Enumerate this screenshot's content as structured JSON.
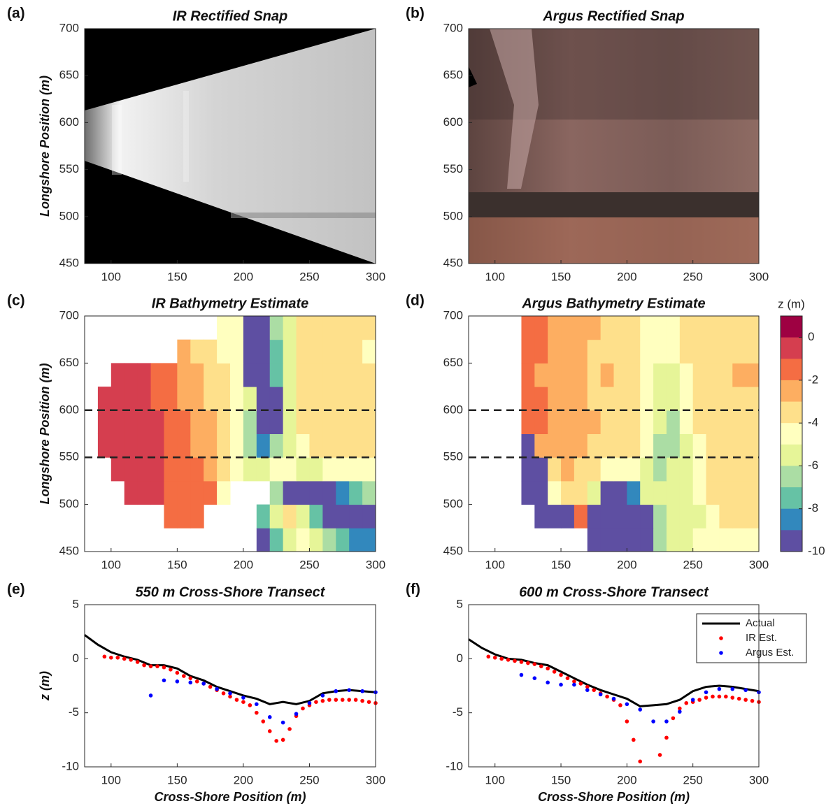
{
  "chart_data": [
    {
      "type": "image",
      "panel_label": "(a)",
      "title": "IR Rectified Snap",
      "ylabel": "Longshore Position (m)",
      "xlim": [
        80,
        300
      ],
      "ylim": [
        450,
        700
      ],
      "xticks": [
        100,
        150,
        200,
        250,
        300
      ],
      "yticks": [
        450,
        500,
        550,
        600,
        650,
        700
      ]
    },
    {
      "type": "image",
      "panel_label": "(b)",
      "title": "Argus Rectified Snap",
      "xlim": [
        80,
        300
      ],
      "ylim": [
        450,
        700
      ],
      "xticks": [
        100,
        150,
        200,
        250,
        300
      ],
      "yticks": [
        450,
        500,
        550,
        600,
        650,
        700
      ]
    },
    {
      "type": "heatmap",
      "panel_label": "(c)",
      "title": "IR Bathymetry Estimate",
      "ylabel": "Longshore Position (m)",
      "xlim": [
        80,
        300
      ],
      "ylim": [
        450,
        700
      ],
      "xticks": [
        100,
        150,
        200,
        250,
        300
      ],
      "yticks": [
        450,
        500,
        550,
        600,
        650,
        700
      ],
      "colormap": [
        "#9e0142",
        "#d53e4f",
        "#f46d43",
        "#fdae61",
        "#fee08b",
        "#ffffbf",
        "#e6f598",
        "#abdda4",
        "#66c2a5",
        "#3288bd",
        "#5e4fa2"
      ],
      "zlim": [
        -10,
        1
      ],
      "hlines": [
        550,
        600
      ],
      "x": [
        85,
        95,
        105,
        115,
        125,
        135,
        145,
        155,
        165,
        175,
        185,
        195,
        205,
        215,
        225,
        235,
        245,
        255,
        265,
        275,
        285,
        295
      ],
      "y": [
        462.5,
        487.5,
        512.5,
        537.5,
        562.5,
        587.5,
        612.5,
        637.5,
        662.5,
        687.5
      ],
      "z": [
        [
          null,
          null,
          null,
          null,
          null,
          null,
          null,
          null,
          null,
          null,
          null,
          null,
          null,
          -10,
          -7,
          -5,
          -4,
          -5,
          -6,
          -7,
          -8,
          -8
        ],
        [
          null,
          null,
          null,
          null,
          null,
          null,
          -1,
          -1,
          -1.5,
          null,
          null,
          null,
          null,
          -7,
          -5,
          -3.5,
          -5,
          -7,
          -9,
          -10,
          -10,
          -10
        ],
        [
          null,
          null,
          null,
          0,
          0,
          -0.5,
          -1,
          -1,
          -1.5,
          -1.5,
          -4,
          null,
          null,
          null,
          -6,
          -9,
          -10,
          -10,
          -9,
          -8,
          -7,
          -6
        ],
        [
          null,
          null,
          0,
          0,
          0,
          -0.5,
          -1,
          -1.5,
          -1.5,
          -2,
          -3,
          -4.5,
          -5,
          -5,
          -4.5,
          -4.5,
          -5,
          -5,
          -4.5,
          -4,
          -4,
          -4
        ],
        [
          null,
          0,
          0,
          0,
          0,
          -0.5,
          -1,
          -1.5,
          -2,
          -2.5,
          -3.5,
          -4.5,
          -6,
          -8,
          -6,
          -5,
          -4,
          -3.5,
          -3,
          -3,
          -3,
          -3
        ],
        [
          null,
          0,
          0,
          0,
          0,
          -0.5,
          -1,
          -1.5,
          -2,
          -2.5,
          -3,
          -4,
          -6,
          -10,
          -10,
          -5,
          -3.5,
          -3,
          -3,
          -3,
          -3,
          -3
        ],
        [
          null,
          0,
          0,
          0,
          0,
          -1,
          -1.5,
          -2,
          -2.5,
          -3,
          -3.5,
          -4,
          -5,
          -10,
          -10,
          -5,
          -3.5,
          -3,
          -3,
          -3,
          -3,
          -3
        ],
        [
          null,
          null,
          0,
          0,
          -0.5,
          -1,
          -1.5,
          -2,
          -2.5,
          -3,
          -3.5,
          -4.5,
          -10,
          -10,
          -7,
          -5,
          -3.5,
          -3,
          -3,
          -3,
          -3,
          -3
        ],
        [
          null,
          null,
          null,
          null,
          null,
          null,
          null,
          -2.5,
          -3,
          -3.5,
          -4,
          -4.5,
          -10,
          -10,
          -7,
          -5,
          -3.5,
          -3,
          -3.5,
          -3,
          -3,
          -4.5
        ],
        [
          null,
          null,
          null,
          null,
          null,
          null,
          null,
          null,
          null,
          null,
          -4,
          -4.5,
          -10,
          -10,
          -6,
          -5,
          -3.5,
          -3,
          -3,
          -3,
          -3,
          -3
        ]
      ]
    },
    {
      "type": "heatmap",
      "panel_label": "(d)",
      "title": "Argus Bathymetry Estimate",
      "xlim": [
        80,
        300
      ],
      "ylim": [
        450,
        700
      ],
      "xticks": [
        100,
        150,
        200,
        250,
        300
      ],
      "yticks": [
        450,
        500,
        550,
        600,
        650,
        700
      ],
      "colormap": [
        "#9e0142",
        "#d53e4f",
        "#f46d43",
        "#fdae61",
        "#fee08b",
        "#ffffbf",
        "#e6f598",
        "#abdda4",
        "#66c2a5",
        "#3288bd",
        "#5e4fa2"
      ],
      "zlim": [
        -10,
        1
      ],
      "hlines": [
        550,
        600
      ],
      "colorbar": {
        "label": "z (m)",
        "ticks": [
          0,
          -2,
          -4,
          -6,
          -8,
          -10
        ]
      },
      "x": [
        85,
        95,
        105,
        115,
        125,
        135,
        145,
        155,
        165,
        175,
        185,
        195,
        205,
        215,
        225,
        235,
        245,
        255,
        265,
        275,
        285,
        295
      ],
      "y": [
        462.5,
        487.5,
        512.5,
        537.5,
        562.5,
        587.5,
        612.5,
        637.5,
        662.5,
        687.5
      ],
      "z": [
        [
          null,
          null,
          null,
          null,
          null,
          null,
          null,
          null,
          null,
          -10,
          -10,
          -10,
          -10,
          -10,
          -6,
          -5,
          -5,
          -4.5,
          -4.5,
          -4,
          -4,
          -4
        ],
        [
          null,
          null,
          null,
          null,
          null,
          -10,
          -10,
          -10,
          -1,
          -10,
          -10,
          -10,
          -10,
          -9,
          -6,
          -5.5,
          -5,
          -5,
          -4.5,
          -3,
          -3,
          -3
        ],
        [
          null,
          null,
          null,
          null,
          -10,
          -10,
          -4.5,
          -3,
          -3,
          -5,
          -10,
          -10,
          -8,
          -5,
          -5,
          -5,
          -5,
          -4.5,
          -3,
          -3,
          -3,
          -3
        ],
        [
          null,
          null,
          null,
          null,
          -10,
          -10,
          -3.5,
          -2.5,
          -3,
          -3,
          -4.5,
          -4.5,
          -4.5,
          -5,
          -6,
          -5.5,
          -5,
          -4,
          -3,
          -3,
          -3,
          -3
        ],
        [
          null,
          null,
          null,
          null,
          -10,
          -2.5,
          -2.5,
          -2.5,
          -2.5,
          -3,
          -3,
          -3,
          -3.5,
          -4.5,
          -6,
          -6,
          -5,
          -4,
          -3,
          -3,
          -3,
          -3
        ],
        [
          null,
          null,
          null,
          null,
          -1.5,
          -1.5,
          -2.5,
          -2.5,
          -2.5,
          -2.5,
          -3,
          -3,
          -3.5,
          -4.5,
          -5.5,
          -6,
          -4.5,
          -3,
          -3,
          -3,
          -3,
          -3
        ],
        [
          null,
          null,
          null,
          null,
          -1.5,
          -1.5,
          -2.5,
          -2.5,
          -2.5,
          -3,
          -3,
          -3,
          -3,
          -4,
          -5.5,
          -5.5,
          -4,
          -3,
          -3,
          -3,
          -3,
          -3
        ],
        [
          null,
          null,
          null,
          null,
          -1.5,
          -2,
          -2.5,
          -2,
          -2.5,
          -3,
          -2.5,
          -3,
          -3.5,
          -4,
          -5.5,
          -5,
          -4,
          -3,
          -3,
          -3,
          -2.5,
          -2.5
        ],
        [
          null,
          null,
          null,
          null,
          -1.5,
          -1.5,
          -2,
          -2.5,
          -2.5,
          -3,
          -3,
          -3,
          -3.5,
          -4.5,
          -4.5,
          -4.5,
          -3.5,
          -3,
          -3,
          -3,
          -3,
          -3
        ],
        [
          null,
          null,
          null,
          null,
          -1.5,
          -1.5,
          -2,
          -2.5,
          -2.5,
          -2.5,
          -3,
          -3,
          -3.5,
          -4.5,
          -4.5,
          -4,
          -3.5,
          -3,
          -3,
          -3,
          -3,
          -3
        ]
      ]
    },
    {
      "type": "line",
      "panel_label": "(e)",
      "title": "550 m Cross-Shore Transect",
      "ylabel": "z (m)",
      "xlabel": "Cross-Shore Position (m)",
      "legend": false,
      "xlim": [
        80,
        300
      ],
      "ylim": [
        -10,
        5
      ],
      "xticks": [
        100,
        150,
        200,
        250,
        300
      ],
      "yticks": [
        -10,
        -5,
        0,
        5
      ],
      "series": [
        {
          "name": "Actual",
          "color": "#000000",
          "mode": "line",
          "x": [
            80,
            90,
            100,
            110,
            120,
            130,
            140,
            150,
            160,
            170,
            180,
            190,
            200,
            210,
            220,
            230,
            240,
            250,
            260,
            270,
            280,
            290,
            300
          ],
          "values": [
            2.2,
            1.3,
            0.6,
            0.2,
            -0.1,
            -0.6,
            -0.6,
            -0.9,
            -1.6,
            -2.0,
            -2.6,
            -3.0,
            -3.4,
            -3.7,
            -4.2,
            -4.0,
            -4.2,
            -3.9,
            -3.2,
            -3.0,
            -2.9,
            -3.0,
            -3.1
          ]
        },
        {
          "name": "IR Est.",
          "color": "#ff0000",
          "mode": "markers",
          "x": [
            95,
            100,
            105,
            110,
            115,
            120,
            125,
            130,
            135,
            140,
            145,
            150,
            155,
            160,
            165,
            170,
            175,
            180,
            185,
            190,
            195,
            200,
            205,
            210,
            215,
            220,
            225,
            230,
            235,
            240,
            245,
            250,
            255,
            260,
            265,
            270,
            275,
            280,
            285,
            290,
            295,
            300
          ],
          "values": [
            0.2,
            0.1,
            0.1,
            0,
            -0.1,
            -0.3,
            -0.6,
            -0.7,
            -0.7,
            -0.8,
            -1.0,
            -1.3,
            -1.6,
            -1.8,
            -2.1,
            -2.3,
            -2.6,
            -2.9,
            -3.2,
            -3.5,
            -3.8,
            -4.0,
            -4.3,
            -5.0,
            -5.8,
            -6.7,
            -7.6,
            -7.5,
            -6.5,
            -5.3,
            -4.6,
            -4.3,
            -4.0,
            -3.9,
            -3.8,
            -3.8,
            -3.8,
            -3.8,
            -3.8,
            -3.9,
            -4.0,
            -4.1
          ]
        },
        {
          "name": "Argus Est.",
          "color": "#0000ff",
          "mode": "markers",
          "x": [
            130,
            140,
            150,
            160,
            170,
            180,
            190,
            200,
            210,
            220,
            230,
            240,
            250,
            260,
            270,
            280,
            290,
            300
          ],
          "values": [
            -3.4,
            -2.0,
            -2.1,
            -2.2,
            -2.3,
            -2.8,
            -3.2,
            -3.6,
            -4.2,
            -5.4,
            -5.9,
            -5.1,
            -4.1,
            -3.4,
            -3.0,
            -2.9,
            -3.0,
            -3.1
          ]
        }
      ]
    },
    {
      "type": "line",
      "panel_label": "(f)",
      "title": "600 m Cross-Shore Transect",
      "xlabel": "Cross-Shore Position (m)",
      "legend": "upper right",
      "xlim": [
        80,
        300
      ],
      "ylim": [
        -10,
        5
      ],
      "xticks": [
        100,
        150,
        200,
        250,
        300
      ],
      "yticks": [
        -10,
        -5,
        0,
        5
      ],
      "series": [
        {
          "name": "Actual",
          "color": "#000000",
          "mode": "line",
          "x": [
            80,
            90,
            100,
            110,
            120,
            130,
            140,
            150,
            160,
            170,
            180,
            190,
            200,
            210,
            220,
            230,
            240,
            250,
            260,
            270,
            280,
            290,
            300
          ],
          "values": [
            1.8,
            1.0,
            0.4,
            0.0,
            -0.1,
            -0.4,
            -0.6,
            -1.2,
            -1.8,
            -2.4,
            -2.9,
            -3.3,
            -3.7,
            -4.4,
            -4.3,
            -4.2,
            -3.8,
            -3.0,
            -2.6,
            -2.5,
            -2.6,
            -2.8,
            -3.0
          ]
        },
        {
          "name": "IR Est.",
          "color": "#ff0000",
          "mode": "markers",
          "x": [
            95,
            100,
            105,
            110,
            115,
            120,
            125,
            130,
            135,
            140,
            145,
            150,
            155,
            160,
            165,
            170,
            175,
            180,
            185,
            190,
            195,
            200,
            205,
            210,
            225,
            230,
            235,
            240,
            245,
            250,
            255,
            260,
            265,
            270,
            275,
            280,
            285,
            290,
            295,
            300
          ],
          "values": [
            0.2,
            0.1,
            0,
            -0.1,
            -0.2,
            -0.3,
            -0.4,
            -0.5,
            -0.7,
            -0.9,
            -1.2,
            -1.5,
            -1.8,
            -2.1,
            -2.3,
            -2.6,
            -2.9,
            -3.2,
            -3.5,
            -3.8,
            -4.3,
            -5.8,
            -7.5,
            -9.5,
            -8.9,
            -7.3,
            -5.5,
            -4.6,
            -4.1,
            -4.0,
            -3.8,
            -3.6,
            -3.5,
            -3.5,
            -3.5,
            -3.6,
            -3.7,
            -3.8,
            -3.9,
            -4.0
          ]
        },
        {
          "name": "Argus Est.",
          "color": "#0000ff",
          "mode": "markers",
          "x": [
            120,
            130,
            140,
            150,
            160,
            170,
            180,
            190,
            200,
            210,
            220,
            230,
            240,
            250,
            260,
            270,
            280,
            290,
            300
          ],
          "values": [
            -1.5,
            -1.8,
            -2.2,
            -2.4,
            -2.4,
            -2.9,
            -3.3,
            -3.7,
            -4.2,
            -4.7,
            -5.8,
            -5.8,
            -4.9,
            -3.8,
            -3.1,
            -2.8,
            -2.8,
            -2.9,
            -3.1
          ]
        }
      ]
    }
  ]
}
